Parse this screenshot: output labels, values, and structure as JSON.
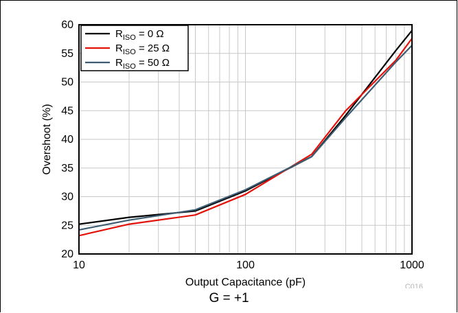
{
  "chart_data": {
    "type": "line",
    "xscale": "log",
    "xlim": [
      10,
      1000
    ],
    "ylim": [
      20,
      60
    ],
    "xlabel": "Output Capacitance (pF)",
    "ylabel": "Overshoot (%)",
    "x_ticks": [
      10,
      100,
      1000
    ],
    "x_tick_labels": [
      "10",
      "100",
      "1000"
    ],
    "y_ticks": [
      20,
      25,
      30,
      35,
      40,
      45,
      50,
      55,
      60
    ],
    "y_tick_labels": [
      "20",
      "25",
      "30",
      "35",
      "40",
      "45",
      "50",
      "55",
      "60"
    ],
    "grid": true,
    "legend_position": "top-left",
    "series": [
      {
        "name_main": "R",
        "name_sub": "ISO",
        "name_rest": " = 0 Ω",
        "color": "#000000",
        "x": [
          10,
          20,
          50,
          100,
          250,
          400,
          800,
          1000
        ],
        "y": [
          25.2,
          26.4,
          27.5,
          31.0,
          37.0,
          44.2,
          55.5,
          59.0
        ]
      },
      {
        "name_main": "R",
        "name_sub": "ISO",
        "name_rest": " = 25 Ω",
        "color": "#e3120b",
        "x": [
          10,
          20,
          50,
          100,
          250,
          400,
          800,
          1000
        ],
        "y": [
          23.2,
          25.2,
          26.8,
          30.4,
          37.4,
          45.0,
          53.8,
          57.6
        ]
      },
      {
        "name_main": "R",
        "name_sub": "ISO",
        "name_rest": " = 50 Ω",
        "color": "#3d5c72",
        "x": [
          10,
          20,
          50,
          100,
          250,
          400,
          800,
          1000
        ],
        "y": [
          24.2,
          25.9,
          27.7,
          31.2,
          37.0,
          43.8,
          53.5,
          56.4
        ]
      }
    ],
    "code_label": "C016",
    "caption": "G = +1"
  }
}
